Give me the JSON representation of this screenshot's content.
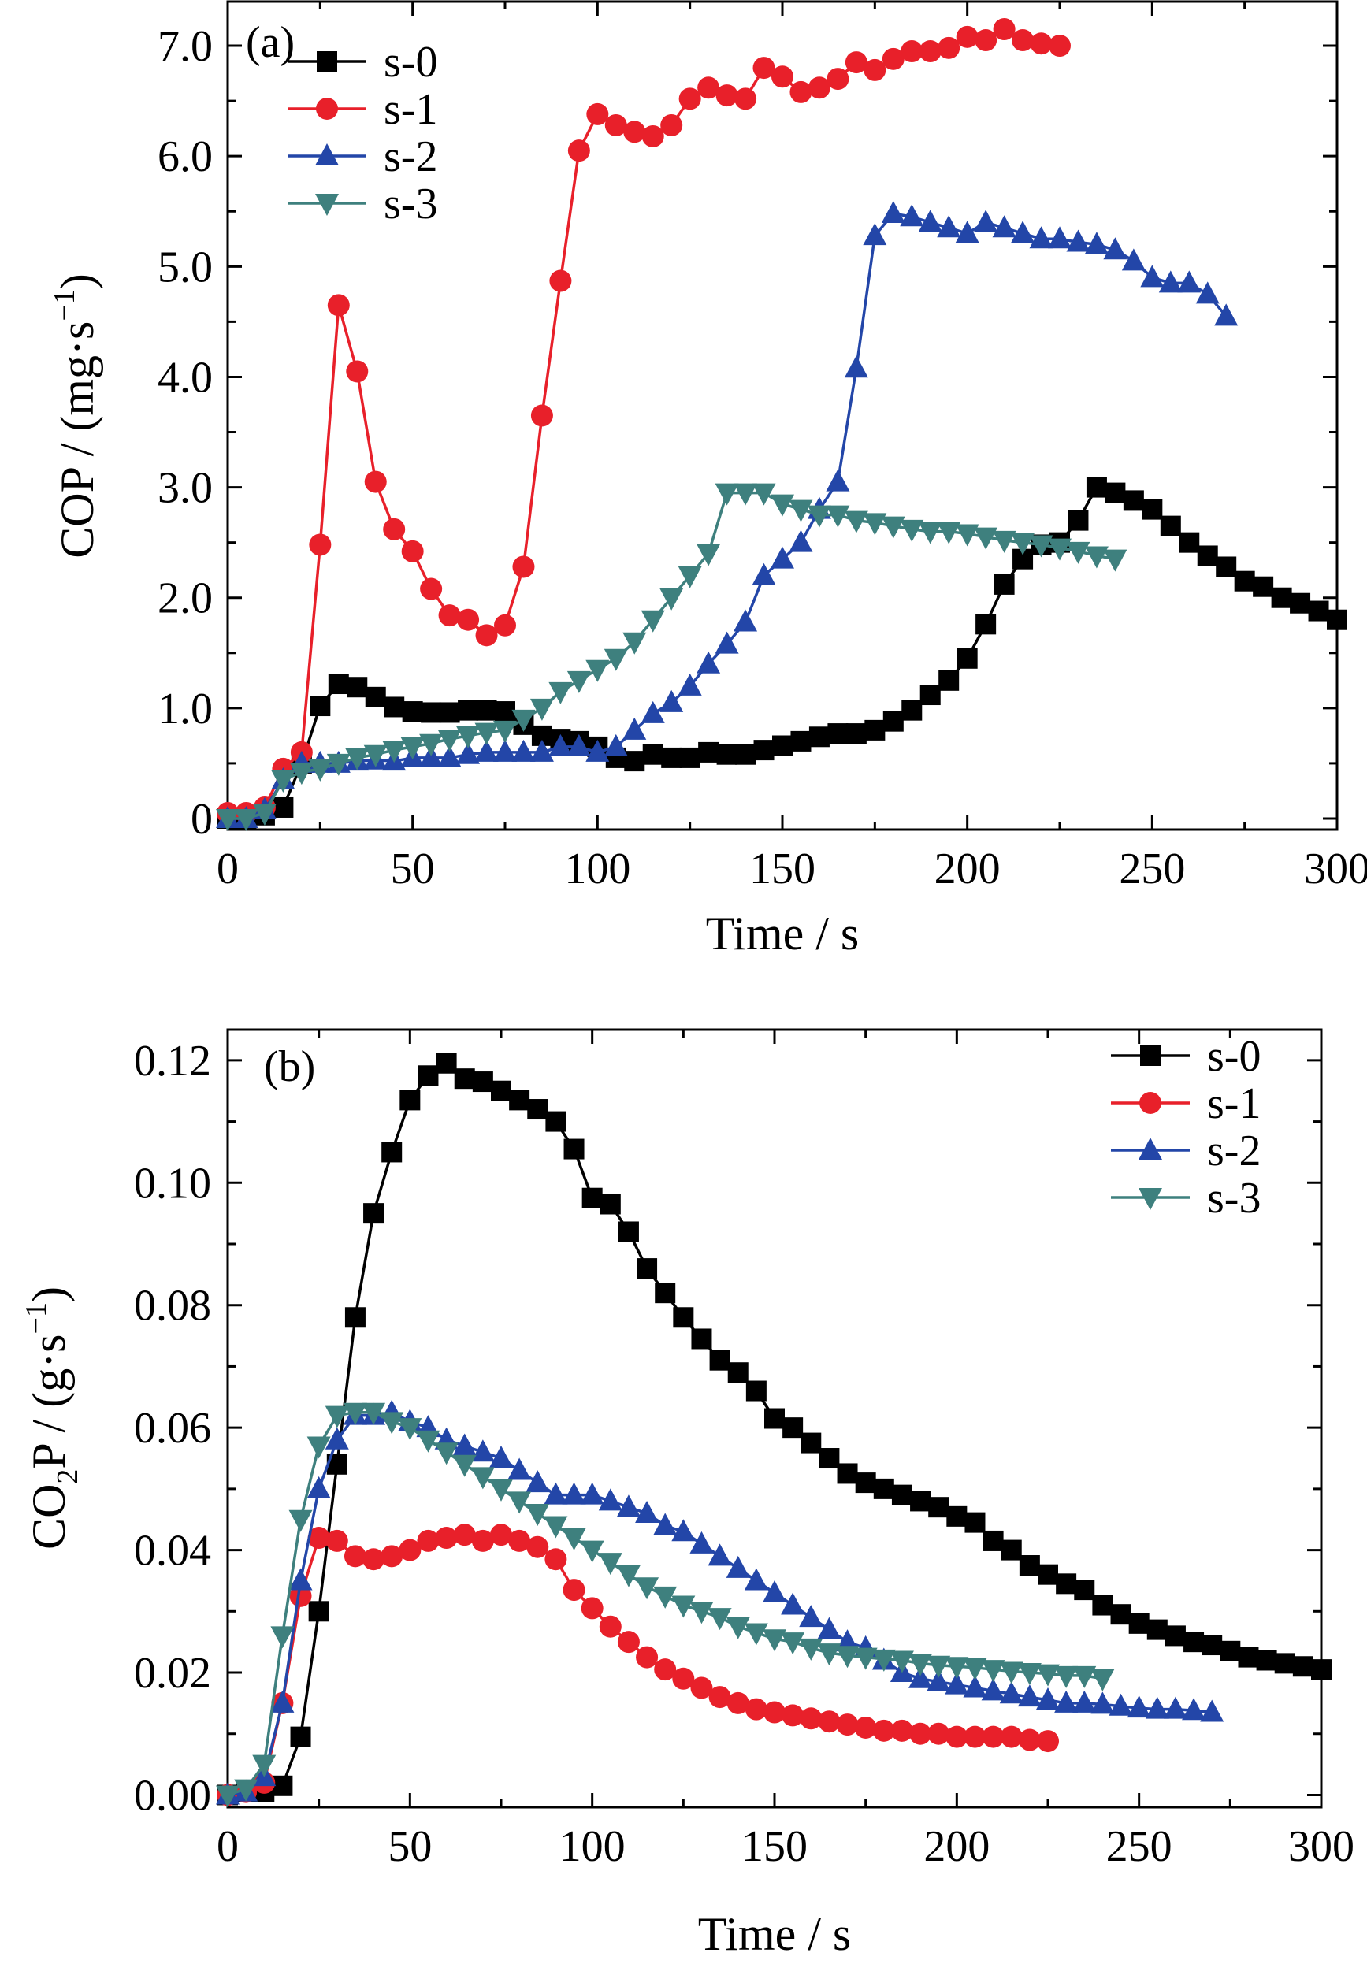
{
  "chart_data": [
    {
      "type": "line",
      "panel_label": "(a)",
      "xlabel": "Time / s",
      "ylabel": "COP / (mg·s",
      "ylabel_sup": "−1",
      "ylabel_close": ")",
      "xlim": [
        0,
        300
      ],
      "ylim": [
        -0.1,
        7.4
      ],
      "xticks": [
        0,
        50,
        100,
        150,
        200,
        250,
        300
      ],
      "xtick_labels": [
        "0",
        "50",
        "100",
        "150",
        "200",
        "250",
        "300"
      ],
      "yticks": [
        0,
        1,
        2,
        3,
        4,
        5,
        6,
        7
      ],
      "ytick_labels": [
        "0",
        "1.0",
        "2.0",
        "3.0",
        "4.0",
        "5.0",
        "6.0",
        "7.0"
      ],
      "legend_position": "top-left",
      "series": [
        {
          "name": "s-0",
          "color": "#000000",
          "marker": "square",
          "x": [
            0,
            5,
            10,
            15,
            20,
            25,
            30,
            35,
            40,
            45,
            50,
            55,
            60,
            65,
            70,
            75,
            80,
            85,
            90,
            95,
            100,
            105,
            110,
            115,
            120,
            125,
            130,
            135,
            140,
            145,
            150,
            155,
            160,
            165,
            170,
            175,
            180,
            185,
            190,
            195,
            200,
            205,
            210,
            215,
            220,
            225,
            230,
            235,
            240,
            245,
            250,
            255,
            260,
            265,
            270,
            275,
            280,
            285,
            290,
            295,
            300
          ],
          "y": [
            0,
            0,
            0.03,
            0.1,
            0.5,
            1.02,
            1.22,
            1.19,
            1.1,
            1.01,
            0.97,
            0.96,
            0.96,
            0.98,
            0.98,
            0.97,
            0.85,
            0.75,
            0.72,
            0.7,
            0.65,
            0.55,
            0.52,
            0.58,
            0.55,
            0.55,
            0.6,
            0.58,
            0.58,
            0.62,
            0.66,
            0.7,
            0.74,
            0.77,
            0.77,
            0.8,
            0.88,
            0.98,
            1.12,
            1.25,
            1.45,
            1.76,
            2.12,
            2.35,
            2.48,
            2.5,
            2.7,
            3.0,
            2.95,
            2.88,
            2.8,
            2.65,
            2.5,
            2.38,
            2.28,
            2.15,
            2.1,
            2.0,
            1.95,
            1.88,
            1.8
          ]
        },
        {
          "name": "s-1",
          "color": "#e8202a",
          "marker": "circle",
          "x": [
            0,
            5,
            10,
            15,
            20,
            25,
            30,
            35,
            40,
            45,
            50,
            55,
            60,
            65,
            70,
            75,
            80,
            85,
            90,
            95,
            100,
            105,
            110,
            115,
            120,
            125,
            130,
            135,
            140,
            145,
            150,
            155,
            160,
            165,
            170,
            175,
            180,
            185,
            190,
            195,
            200,
            205,
            210,
            215,
            220,
            225
          ],
          "y": [
            0.05,
            0.05,
            0.1,
            0.45,
            0.6,
            2.48,
            4.65,
            4.05,
            3.05,
            2.62,
            2.42,
            2.08,
            1.84,
            1.8,
            1.66,
            1.75,
            2.28,
            3.65,
            4.87,
            6.05,
            6.38,
            6.28,
            6.22,
            6.18,
            6.28,
            6.52,
            6.62,
            6.55,
            6.52,
            6.8,
            6.72,
            6.58,
            6.62,
            6.7,
            6.85,
            6.78,
            6.88,
            6.95,
            6.95,
            6.98,
            7.08,
            7.05,
            7.15,
            7.05,
            7.02,
            7.0
          ]
        },
        {
          "name": "s-2",
          "color": "#2346a8",
          "marker": "triangle-up",
          "x": [
            0,
            5,
            10,
            15,
            20,
            25,
            30,
            35,
            40,
            45,
            50,
            55,
            60,
            65,
            70,
            75,
            80,
            85,
            90,
            95,
            100,
            105,
            110,
            115,
            120,
            125,
            130,
            135,
            140,
            145,
            150,
            155,
            160,
            165,
            170,
            175,
            180,
            185,
            190,
            195,
            200,
            205,
            210,
            215,
            220,
            225,
            230,
            235,
            240,
            245,
            250,
            255,
            260,
            265,
            270
          ],
          "y": [
            0,
            0,
            0.08,
            0.35,
            0.5,
            0.5,
            0.5,
            0.52,
            0.53,
            0.52,
            0.55,
            0.55,
            0.55,
            0.58,
            0.6,
            0.6,
            0.6,
            0.6,
            0.65,
            0.65,
            0.6,
            0.65,
            0.8,
            0.95,
            1.05,
            1.2,
            1.4,
            1.58,
            1.78,
            2.2,
            2.35,
            2.5,
            2.8,
            3.05,
            4.08,
            5.28,
            5.48,
            5.45,
            5.4,
            5.35,
            5.3,
            5.4,
            5.35,
            5.3,
            5.25,
            5.25,
            5.22,
            5.2,
            5.15,
            5.05,
            4.9,
            4.85,
            4.85,
            4.75,
            4.55
          ]
        },
        {
          "name": "s-3",
          "color": "#3e807e",
          "marker": "triangle-down",
          "x": [
            0,
            5,
            10,
            15,
            20,
            25,
            30,
            35,
            40,
            45,
            50,
            55,
            60,
            65,
            70,
            75,
            80,
            85,
            90,
            95,
            100,
            105,
            110,
            115,
            120,
            125,
            130,
            135,
            140,
            145,
            150,
            155,
            160,
            165,
            170,
            175,
            180,
            185,
            190,
            195,
            200,
            205,
            210,
            215,
            220,
            225,
            230,
            235,
            240
          ],
          "y": [
            0,
            0,
            0.05,
            0.35,
            0.42,
            0.45,
            0.5,
            0.55,
            0.58,
            0.62,
            0.65,
            0.68,
            0.72,
            0.75,
            0.78,
            0.8,
            0.9,
            1.0,
            1.15,
            1.25,
            1.35,
            1.45,
            1.6,
            1.8,
            2.0,
            2.2,
            2.4,
            2.95,
            2.95,
            2.95,
            2.85,
            2.8,
            2.75,
            2.75,
            2.7,
            2.68,
            2.65,
            2.62,
            2.6,
            2.6,
            2.58,
            2.55,
            2.52,
            2.5,
            2.48,
            2.45,
            2.42,
            2.38,
            2.35
          ]
        }
      ]
    },
    {
      "type": "line",
      "panel_label": "(b)",
      "xlabel": "Time / s",
      "ylabel_pre": "CO",
      "ylabel_sub": "2",
      "ylabel": "P / (g·s",
      "ylabel_sup": "−1",
      "ylabel_close": ")",
      "xlim": [
        0,
        300
      ],
      "ylim": [
        -0.002,
        0.125
      ],
      "xticks": [
        0,
        50,
        100,
        150,
        200,
        250,
        300
      ],
      "xtick_labels": [
        "0",
        "50",
        "100",
        "150",
        "200",
        "250",
        "300"
      ],
      "yticks": [
        0,
        0.02,
        0.04,
        0.06,
        0.08,
        0.1,
        0.12
      ],
      "ytick_labels": [
        "0.00",
        "0.02",
        "0.04",
        "0.06",
        "0.08",
        "0.10",
        "0.12"
      ],
      "legend_position": "top-right",
      "series": [
        {
          "name": "s-0",
          "color": "#000000",
          "marker": "square",
          "x": [
            0,
            5,
            10,
            15,
            20,
            25,
            30,
            35,
            40,
            45,
            50,
            55,
            60,
            65,
            70,
            75,
            80,
            85,
            90,
            95,
            100,
            105,
            110,
            115,
            120,
            125,
            130,
            135,
            140,
            145,
            150,
            155,
            160,
            165,
            170,
            175,
            180,
            185,
            190,
            195,
            200,
            205,
            210,
            215,
            220,
            225,
            230,
            235,
            240,
            245,
            250,
            255,
            260,
            265,
            270,
            275,
            280,
            285,
            290,
            295,
            300
          ],
          "y": [
            0,
            0.0005,
            0.0005,
            0.0015,
            0.0095,
            0.03,
            0.054,
            0.078,
            0.095,
            0.105,
            0.1135,
            0.1175,
            0.1195,
            0.117,
            0.1165,
            0.115,
            0.1135,
            0.112,
            0.11,
            0.1055,
            0.0975,
            0.0965,
            0.092,
            0.086,
            0.082,
            0.078,
            0.0745,
            0.071,
            0.069,
            0.066,
            0.0615,
            0.06,
            0.0575,
            0.055,
            0.0525,
            0.051,
            0.05,
            0.049,
            0.048,
            0.047,
            0.0455,
            0.0445,
            0.0415,
            0.04,
            0.0375,
            0.036,
            0.0345,
            0.0335,
            0.031,
            0.0295,
            0.028,
            0.027,
            0.026,
            0.025,
            0.0245,
            0.0235,
            0.0225,
            0.022,
            0.0215,
            0.021,
            0.0205
          ]
        },
        {
          "name": "s-1",
          "color": "#e8202a",
          "marker": "circle",
          "x": [
            0,
            5,
            10,
            15,
            20,
            25,
            30,
            35,
            40,
            45,
            50,
            55,
            60,
            65,
            70,
            75,
            80,
            85,
            90,
            95,
            100,
            105,
            110,
            115,
            120,
            125,
            130,
            135,
            140,
            145,
            150,
            155,
            160,
            165,
            170,
            175,
            180,
            185,
            190,
            195,
            200,
            205,
            210,
            215,
            220,
            225
          ],
          "y": [
            0,
            0.0005,
            0.002,
            0.015,
            0.0325,
            0.042,
            0.0415,
            0.039,
            0.0385,
            0.039,
            0.04,
            0.0415,
            0.042,
            0.0425,
            0.0415,
            0.0425,
            0.0415,
            0.0405,
            0.0385,
            0.0335,
            0.0305,
            0.0275,
            0.025,
            0.0225,
            0.0205,
            0.019,
            0.0175,
            0.016,
            0.015,
            0.014,
            0.0135,
            0.013,
            0.0125,
            0.012,
            0.0115,
            0.011,
            0.0105,
            0.0105,
            0.01,
            0.01,
            0.0095,
            0.0095,
            0.0095,
            0.0095,
            0.009,
            0.0088
          ]
        },
        {
          "name": "s-2",
          "color": "#2346a8",
          "marker": "triangle-up",
          "x": [
            0,
            5,
            10,
            15,
            20,
            25,
            30,
            35,
            40,
            45,
            50,
            55,
            60,
            65,
            70,
            75,
            80,
            85,
            90,
            95,
            100,
            105,
            110,
            115,
            120,
            125,
            130,
            135,
            140,
            145,
            150,
            155,
            160,
            165,
            170,
            175,
            180,
            185,
            190,
            195,
            200,
            205,
            210,
            215,
            220,
            225,
            230,
            235,
            240,
            245,
            250,
            255,
            260,
            265,
            270
          ],
          "y": [
            0,
            0.0005,
            0.003,
            0.015,
            0.035,
            0.05,
            0.058,
            0.062,
            0.062,
            0.0625,
            0.061,
            0.06,
            0.058,
            0.057,
            0.056,
            0.055,
            0.053,
            0.051,
            0.049,
            0.049,
            0.049,
            0.048,
            0.047,
            0.046,
            0.044,
            0.043,
            0.041,
            0.039,
            0.037,
            0.035,
            0.033,
            0.031,
            0.029,
            0.027,
            0.025,
            0.024,
            0.022,
            0.02,
            0.019,
            0.0185,
            0.018,
            0.0175,
            0.017,
            0.0165,
            0.016,
            0.0155,
            0.015,
            0.015,
            0.0148,
            0.0145,
            0.0142,
            0.014,
            0.014,
            0.0138,
            0.0135
          ]
        },
        {
          "name": "s-3",
          "color": "#3e807e",
          "marker": "triangle-down",
          "x": [
            0,
            5,
            10,
            15,
            20,
            25,
            30,
            35,
            40,
            45,
            50,
            55,
            60,
            65,
            70,
            75,
            80,
            85,
            90,
            95,
            100,
            105,
            110,
            115,
            120,
            125,
            130,
            135,
            140,
            145,
            150,
            155,
            160,
            165,
            170,
            175,
            180,
            185,
            190,
            195,
            200,
            205,
            210,
            215,
            220,
            225,
            230,
            235,
            240
          ],
          "y": [
            0,
            0.001,
            0.005,
            0.026,
            0.045,
            0.057,
            0.062,
            0.0625,
            0.0625,
            0.061,
            0.06,
            0.058,
            0.056,
            0.054,
            0.052,
            0.05,
            0.048,
            0.046,
            0.044,
            0.042,
            0.04,
            0.038,
            0.036,
            0.034,
            0.0325,
            0.031,
            0.03,
            0.029,
            0.0275,
            0.0265,
            0.0255,
            0.025,
            0.024,
            0.0232,
            0.0228,
            0.0225,
            0.0222,
            0.022,
            0.0215,
            0.0212,
            0.021,
            0.0208,
            0.0205,
            0.0202,
            0.02,
            0.0198,
            0.0195,
            0.0195,
            0.019
          ]
        }
      ]
    }
  ]
}
